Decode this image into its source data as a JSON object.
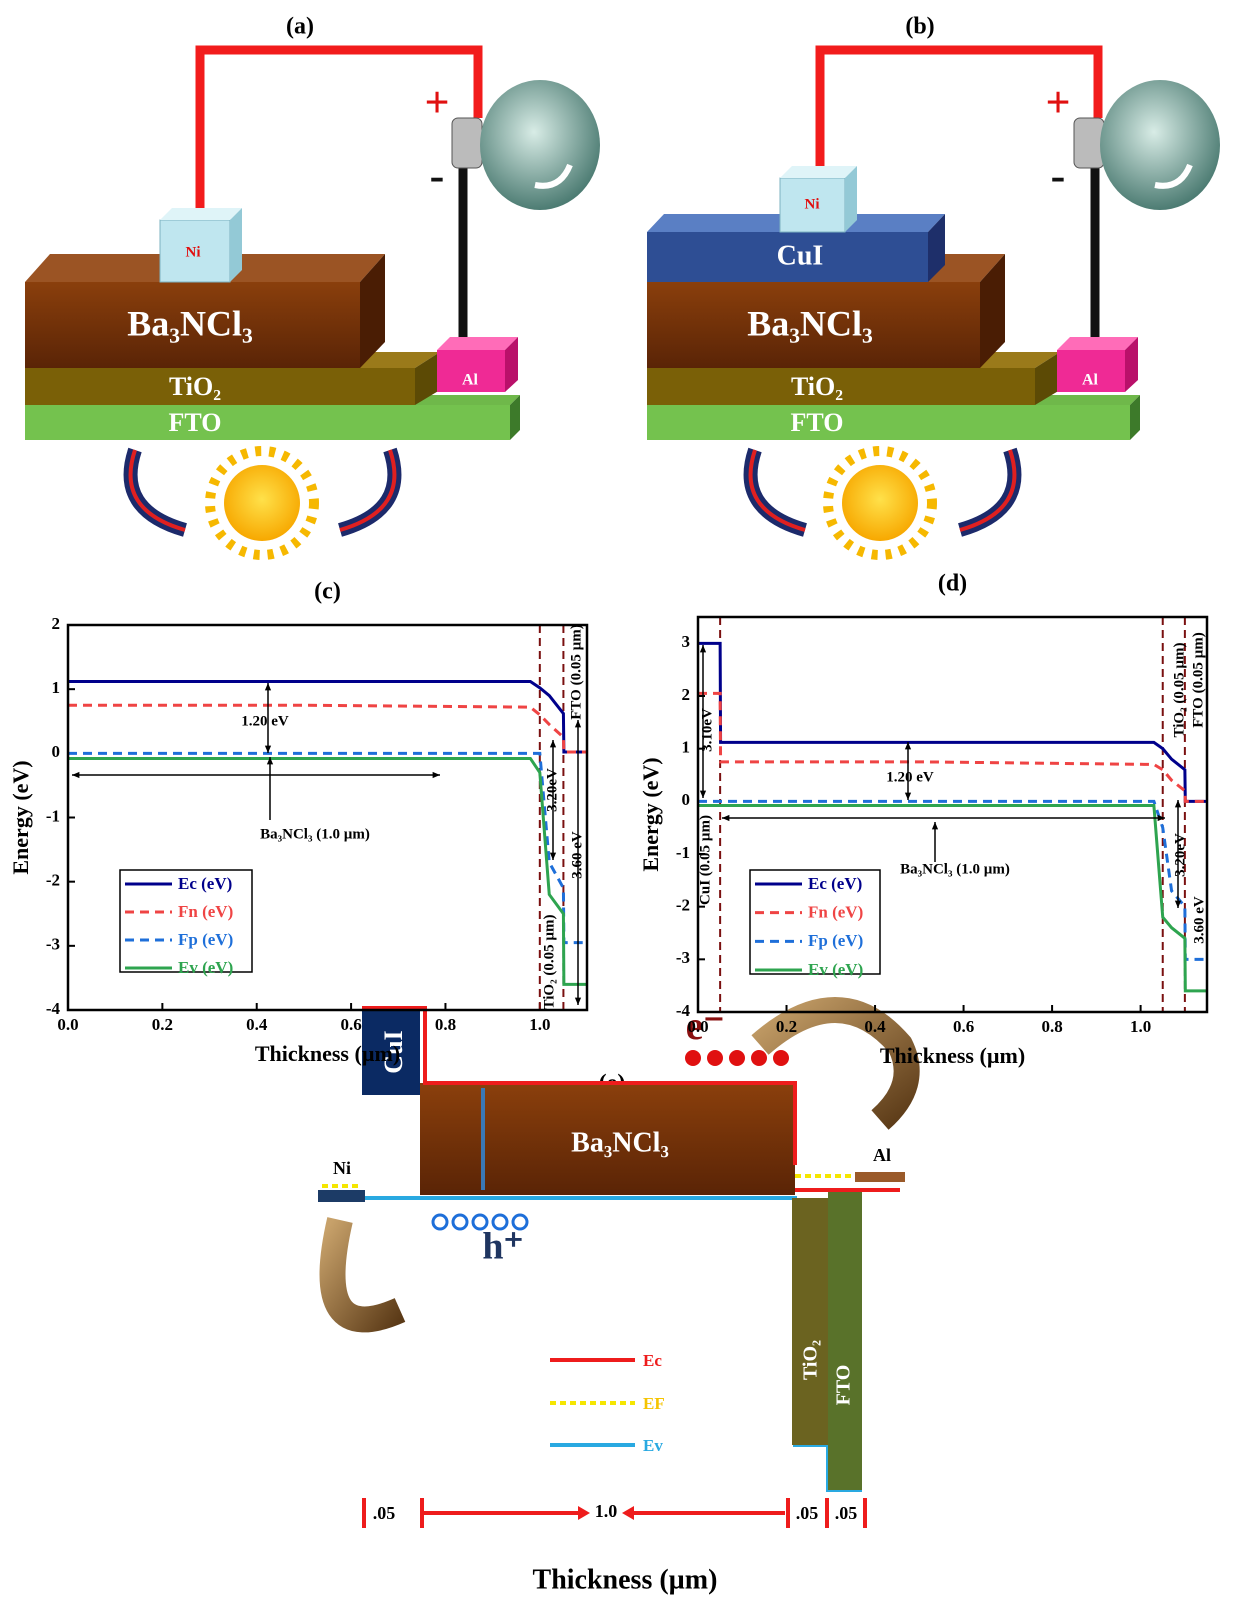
{
  "panels": {
    "a": {
      "label": "(a)",
      "ni": "Ni",
      "absorber": "Ba₃NCl₃",
      "etl": "TiO₂",
      "fto": "FTO",
      "al": "Al",
      "plus": "+",
      "minus": "-"
    },
    "b": {
      "label": "(b)",
      "ni": "Ni",
      "htl": "CuI",
      "absorber": "Ba₃NCl₃",
      "etl": "TiO₂",
      "fto": "FTO",
      "al": "Al",
      "plus": "+",
      "minus": "-"
    },
    "e": {
      "label": "(e)",
      "electron": "e⁻",
      "hole": "h⁺",
      "absorber": "Ba₃NCl₃",
      "htl": "CuI",
      "ni": "Ni",
      "al": "Al",
      "etl": "TiO₂",
      "fto": "FTO",
      "legend": [
        "Ec",
        "EF",
        "Ev"
      ],
      "widths": [
        ".05",
        "1.0",
        ".05",
        ".05"
      ],
      "axis_label": "Thickness (µm)"
    }
  },
  "chart_data": [
    {
      "type": "line",
      "title": "(c)",
      "x_label": "Thickness  (µm)",
      "y_label": "Energy (eV)",
      "xlim": [
        0,
        1.1
      ],
      "ylim": [
        -4,
        2
      ],
      "xticks": [
        {
          "value": 0,
          "label": "0.0"
        },
        0.2,
        0.4,
        0.6,
        0.8,
        {
          "value": 1,
          "label": "1.0"
        }
      ],
      "yticks": [
        -4,
        -3,
        -2,
        -1,
        0,
        1,
        2
      ],
      "x": [
        0,
        0.5,
        0.98,
        1.0,
        1.02,
        1.05,
        1.051,
        1.1
      ],
      "series": [
        {
          "name": "Ec (eV)",
          "color": "#00008b",
          "dashed": false,
          "values": [
            1.12,
            1.12,
            1.12,
            1.02,
            0.9,
            0.62,
            0.02,
            0.02
          ]
        },
        {
          "name": "Fn (eV)",
          "color": "#ef4444",
          "dashed": true,
          "values": [
            0.75,
            0.75,
            0.72,
            0.6,
            0.45,
            0.25,
            0.02,
            0.02
          ]
        },
        {
          "name": "Fp (eV)",
          "color": "#1e6fd9",
          "dashed": true,
          "values": [
            0,
            0,
            0,
            0,
            -1.7,
            -2.1,
            -2.95,
            -2.95
          ]
        },
        {
          "name": "Ev (eV)",
          "color": "#2ea44f",
          "dashed": false,
          "values": [
            -0.08,
            -0.08,
            -0.08,
            -0.3,
            -2.2,
            -2.5,
            -3.6,
            -3.6
          ]
        }
      ],
      "vlines": [
        1.0,
        1.05
      ],
      "legend": "lower left",
      "annotations": [
        "1.20 eV",
        "Ba₃NCl₃ (1.0 µm)",
        "3.20eV",
        "3.60 eV",
        "TiO₂ (0.05 µm)",
        "FTO (0.05 µm)"
      ]
    },
    {
      "type": "line",
      "title": "(d)",
      "x_label": "Thickness  (µm)",
      "y_label": "Energy (eV)",
      "xlim": [
        0,
        1.15
      ],
      "ylim": [
        -4,
        3.5
      ],
      "xticks": [
        {
          "value": 0,
          "label": "0.0"
        },
        0.2,
        0.4,
        0.6,
        0.8,
        {
          "value": 1,
          "label": "1.0"
        }
      ],
      "yticks": [
        -4,
        -3,
        -2,
        -1,
        0,
        1,
        2,
        3
      ],
      "x": [
        0,
        0.05,
        0.051,
        0.5,
        1.03,
        1.05,
        1.07,
        1.1,
        1.101,
        1.15
      ],
      "series": [
        {
          "name": "Ec (eV)",
          "color": "#00008b",
          "dashed": false,
          "values": [
            3,
            3,
            1.12,
            1.12,
            1.12,
            1.0,
            0.8,
            0.6,
            0.0,
            0.0
          ]
        },
        {
          "name": "Fn (eV)",
          "color": "#ef4444",
          "dashed": true,
          "values": [
            2.05,
            2.05,
            0.75,
            0.75,
            0.7,
            0.6,
            0.4,
            0.2,
            0.0,
            0.0
          ]
        },
        {
          "name": "Fp (eV)",
          "color": "#1e6fd9",
          "dashed": true,
          "values": [
            0,
            0,
            0,
            0,
            0,
            -0.5,
            -1.7,
            -2.0,
            -3.0,
            -3.0
          ]
        },
        {
          "name": "Ev (eV)",
          "color": "#2ea44f",
          "dashed": false,
          "values": [
            -0.08,
            -0.08,
            -0.08,
            -0.08,
            -0.08,
            -2.2,
            -2.4,
            -2.6,
            -3.6,
            -3.6
          ]
        }
      ],
      "vlines": [
        0.05,
        1.05,
        1.1
      ],
      "legend": "lower left",
      "annotations": [
        "3.10eV",
        "CuI (0.05 µm)",
        "1.20 eV",
        "Ba₃NCl₃ (1.0 µm)",
        "TiO₂ (0.05 µm)",
        "FTO (0.05 µm)",
        "3.20eV",
        "3.60 eV"
      ]
    }
  ]
}
